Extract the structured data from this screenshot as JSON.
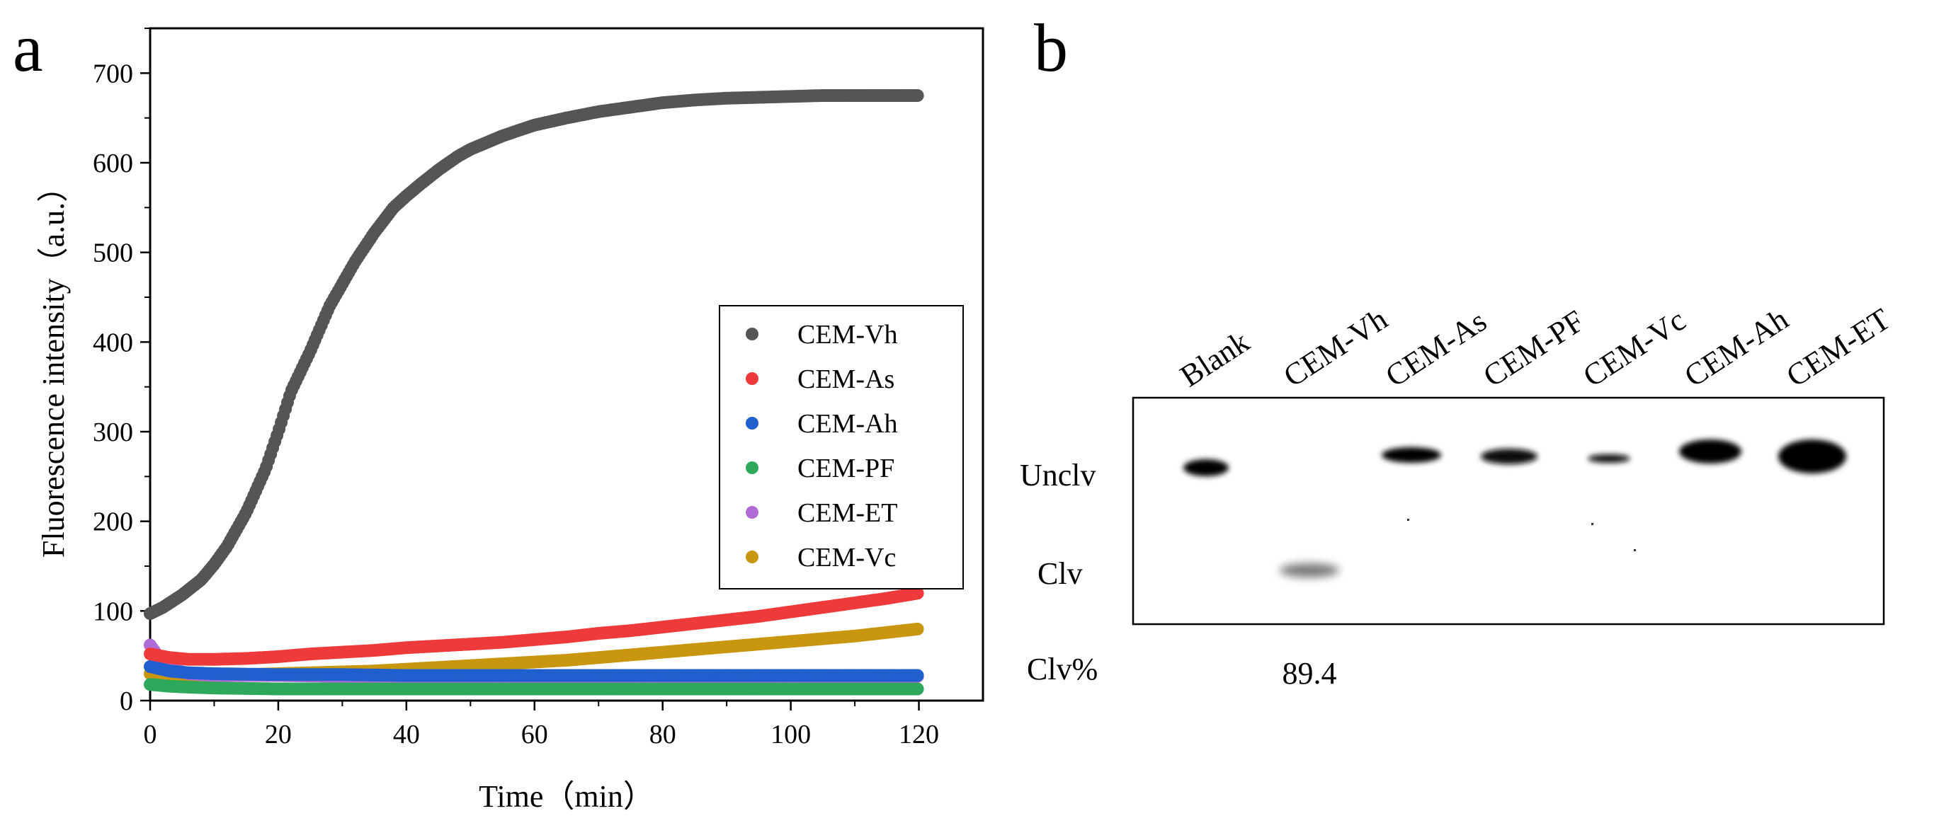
{
  "panels": {
    "a": "a",
    "b": "b"
  },
  "chart_data": {
    "type": "scatter",
    "xlabel": "Time（min）",
    "ylabel": "Fluorescence intensity（a.u.）",
    "xlim": [
      0,
      130
    ],
    "ylim": [
      0,
      750
    ],
    "xticks": [
      0,
      20,
      40,
      60,
      80,
      100,
      120
    ],
    "yticks": [
      0,
      100,
      200,
      300,
      400,
      500,
      600,
      700
    ],
    "legend_position": "right-middle",
    "grid": false,
    "series": [
      {
        "name": "CEM-Vh",
        "color": "#555555",
        "x": [
          0,
          2,
          5,
          8,
          10,
          12,
          15,
          18,
          20,
          22,
          25,
          28,
          30,
          32,
          35,
          38,
          40,
          42,
          45,
          48,
          50,
          55,
          60,
          65,
          70,
          75,
          80,
          85,
          90,
          95,
          100,
          105,
          110,
          115,
          120
        ],
        "y": [
          97,
          104,
          118,
          135,
          152,
          172,
          210,
          258,
          300,
          345,
          390,
          440,
          465,
          490,
          522,
          550,
          563,
          575,
          592,
          607,
          615,
          630,
          642,
          650,
          657,
          662,
          667,
          670,
          672,
          673,
          674,
          675,
          675,
          675,
          675
        ]
      },
      {
        "name": "CEM-As",
        "color": "#ee3a3a",
        "x": [
          0,
          3,
          6,
          10,
          15,
          20,
          25,
          30,
          35,
          40,
          45,
          50,
          55,
          60,
          65,
          70,
          75,
          80,
          85,
          90,
          95,
          100,
          105,
          110,
          115,
          120
        ],
        "y": [
          52,
          48,
          46,
          46,
          47,
          49,
          52,
          54,
          56,
          59,
          61,
          63,
          65,
          68,
          71,
          75,
          78,
          82,
          86,
          90,
          94,
          99,
          104,
          109,
          114,
          120
        ]
      },
      {
        "name": "CEM-Ah",
        "color": "#1f5fce",
        "x": [
          0,
          3,
          6,
          10,
          20,
          30,
          40,
          50,
          60,
          70,
          80,
          90,
          100,
          110,
          120
        ],
        "y": [
          38,
          33,
          31,
          30,
          29,
          29,
          28,
          28,
          28,
          28,
          28,
          28,
          28,
          28,
          28
        ]
      },
      {
        "name": "CEM-PF",
        "color": "#2ea85a",
        "x": [
          0,
          3,
          6,
          10,
          20,
          30,
          40,
          50,
          60,
          70,
          80,
          90,
          100,
          110,
          120
        ],
        "y": [
          18,
          16,
          15,
          14,
          13,
          13,
          13,
          13,
          13,
          13,
          13,
          13,
          13,
          13,
          13
        ]
      },
      {
        "name": "CEM-ET",
        "color": "#b06ad6",
        "x": [
          0,
          1,
          2,
          3,
          4,
          6,
          8,
          10,
          15,
          20,
          30,
          40,
          50,
          60,
          70,
          80,
          90,
          100,
          110,
          120
        ],
        "y": [
          62,
          52,
          44,
          38,
          34,
          30,
          29,
          28,
          28,
          28,
          27,
          27,
          27,
          27,
          27,
          27,
          27,
          27,
          27,
          27
        ]
      },
      {
        "name": "CEM-Vc",
        "color": "#c9960f",
        "x": [
          0,
          5,
          10,
          15,
          20,
          25,
          30,
          35,
          40,
          45,
          50,
          55,
          60,
          65,
          70,
          75,
          80,
          85,
          90,
          95,
          100,
          105,
          110,
          115,
          120
        ],
        "y": [
          30,
          28,
          28,
          29,
          30,
          31,
          32,
          33,
          35,
          37,
          39,
          41,
          43,
          45,
          48,
          51,
          54,
          57,
          60,
          63,
          66,
          69,
          72,
          76,
          80
        ]
      }
    ]
  },
  "gel": {
    "lanes": [
      "Blank",
      "CEM-Vh",
      "CEM-As",
      "CEM-PF",
      "CEM-Vc",
      "CEM-Ah",
      "CEM-ET"
    ],
    "row_labels": {
      "uncleaved": "Unclv",
      "cleaved": "Clv",
      "percent": "Clv%"
    },
    "clv_percent_values": [
      "",
      "89.4",
      "",
      "",
      "",
      "",
      ""
    ]
  }
}
